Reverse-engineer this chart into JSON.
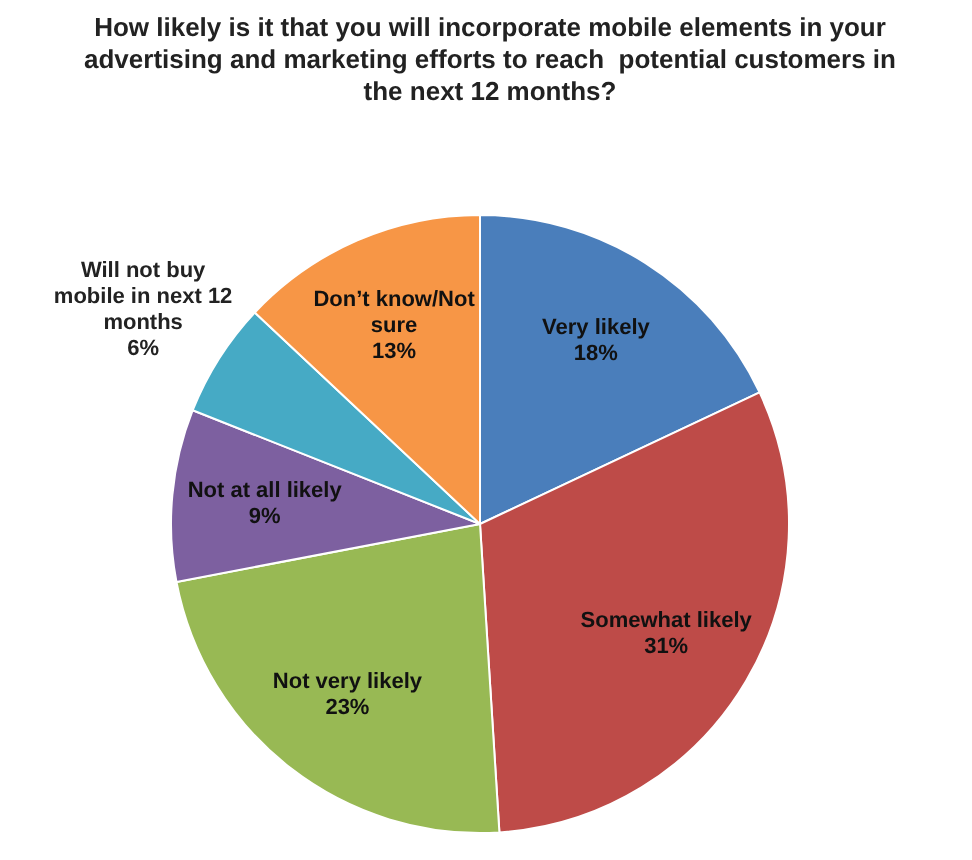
{
  "chart_data": {
    "type": "pie",
    "title": "How likely is it that you will incorporate mobile elements in your advertising and marketing efforts to reach  potential customers in the next 12 months?",
    "categories": [
      "Very likely",
      "Somewhat likely",
      "Not very likely",
      "Not at all likely",
      "Will not buy mobile in next 12 months",
      "Don’t know/Not sure"
    ],
    "values": [
      18,
      31,
      23,
      9,
      6,
      13
    ],
    "value_labels": [
      "18%",
      "31%",
      "23%",
      "9%",
      "6%",
      "13%"
    ],
    "colors": [
      "#4a7ebb",
      "#be4b48",
      "#98b954",
      "#7d60a0",
      "#46aac5",
      "#f79646"
    ],
    "legend": false
  }
}
